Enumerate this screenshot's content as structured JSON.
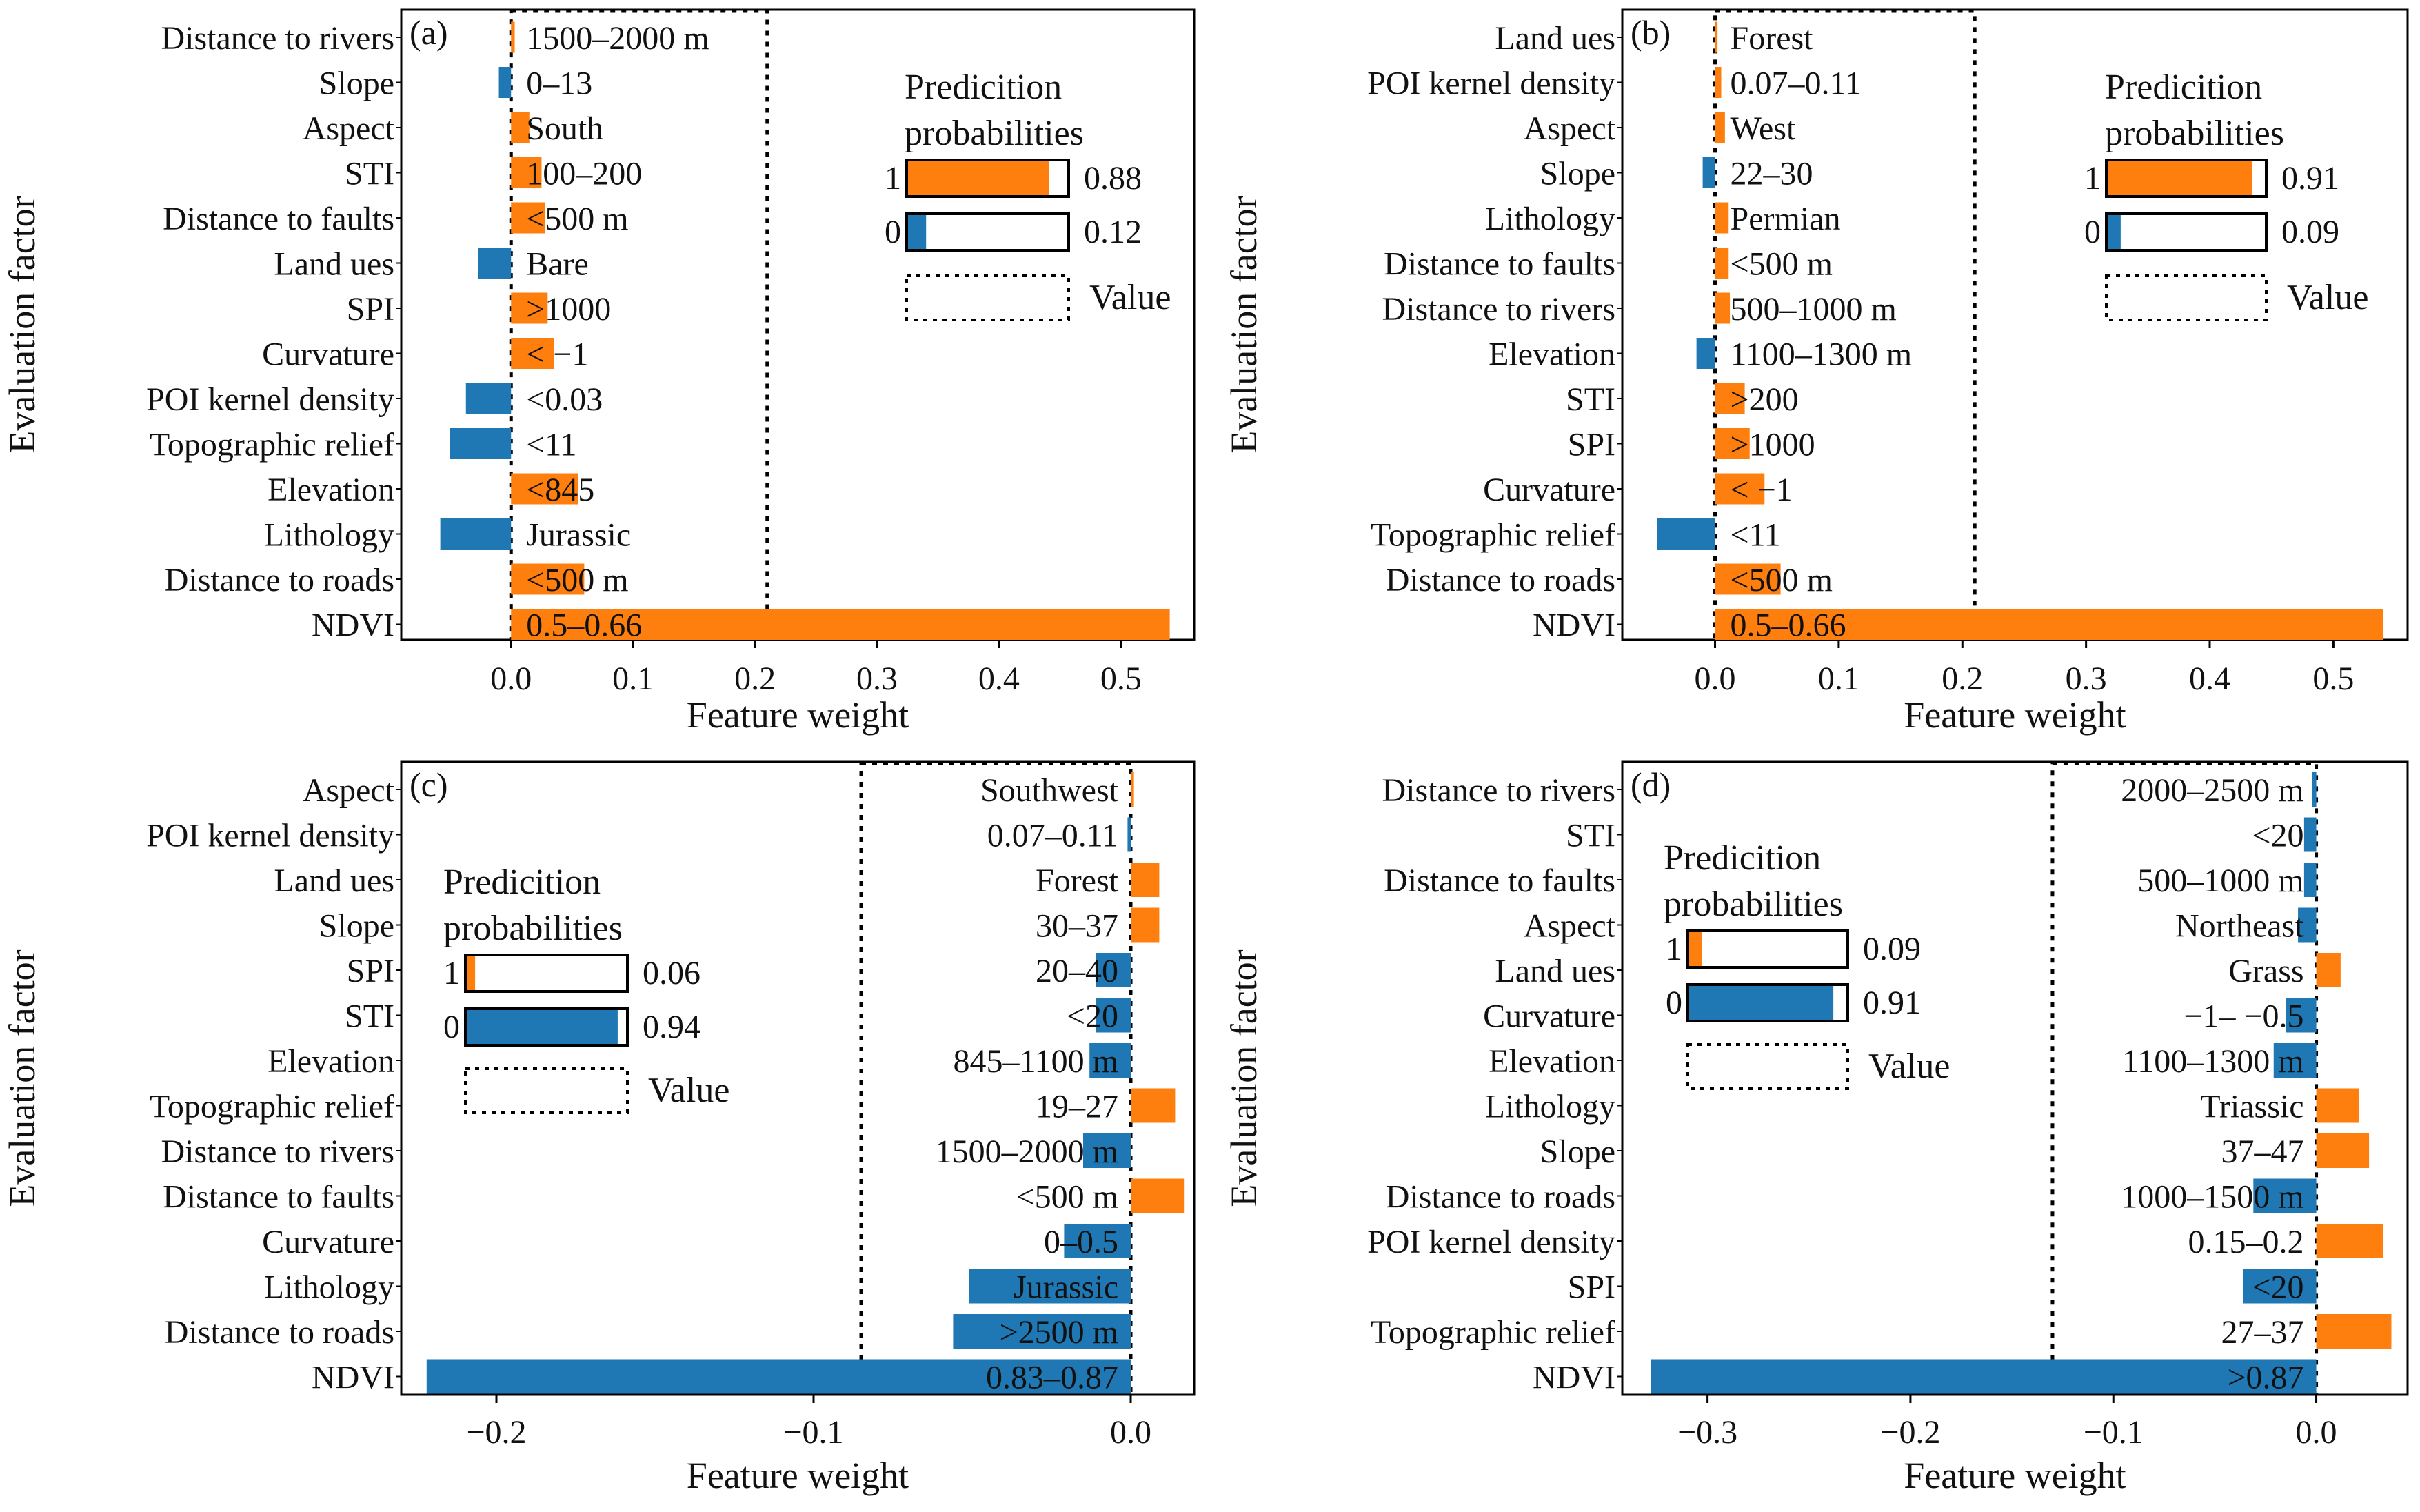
{
  "figure": {
    "colors": {
      "positive": "#ff7f0e",
      "negative": "#1f77b4",
      "frame": "#000000",
      "text": "#111111"
    },
    "common": {
      "xlabel": "Feature weight",
      "ylabel": "Evaluation factor",
      "legend_title_line1": "Predicition",
      "legend_title_line2": "probabilities",
      "value_legend_label": "Value"
    }
  },
  "chart_data": [
    {
      "panel": "(a)",
      "type": "bar",
      "orientation": "horizontal",
      "xlabel": "Feature weight",
      "ylabel": "Evaluation factor",
      "xlim": [
        -0.09,
        0.56
      ],
      "xticks": [
        0.0,
        0.1,
        0.2,
        0.3,
        0.4,
        0.5
      ],
      "xtick_labels": [
        "0.0",
        "0.1",
        "0.2",
        "0.3",
        "0.4",
        "0.5"
      ],
      "value_box_x": 0.21,
      "values_side": "right",
      "prediction_probabilities": {
        "class1": 0.88,
        "class0": 0.12,
        "label1": "1",
        "label0": "0",
        "text1": "0.88",
        "text0": "0.12"
      },
      "rows": [
        {
          "factor": "Distance to rivers",
          "value": "1500–2000 m",
          "weight": 0.003
        },
        {
          "factor": "Slope",
          "value": "0–13",
          "weight": -0.01
        },
        {
          "factor": "Aspect",
          "value": "South",
          "weight": 0.015
        },
        {
          "factor": "STI",
          "value": "100–200",
          "weight": 0.025
        },
        {
          "factor": "Distance to faults",
          "value": "<500 m",
          "weight": 0.028
        },
        {
          "factor": "Land ues",
          "value": "Bare",
          "weight": -0.027
        },
        {
          "factor": "SPI",
          "value": ">1000",
          "weight": 0.03
        },
        {
          "factor": "Curvature",
          "value": "< −1",
          "weight": 0.035
        },
        {
          "factor": "POI kernel density",
          "value": "<0.03",
          "weight": -0.037
        },
        {
          "factor": "Topographic relief",
          "value": "<11",
          "weight": -0.05
        },
        {
          "factor": "Elevation",
          "value": "<845",
          "weight": 0.055
        },
        {
          "factor": "Lithology",
          "value": "Jurassic",
          "weight": -0.058
        },
        {
          "factor": "Distance to roads",
          "value": "<500 m",
          "weight": 0.06
        },
        {
          "factor": "NDVI",
          "value": "0.5–0.66",
          "weight": 0.54
        }
      ]
    },
    {
      "panel": "(b)",
      "type": "bar",
      "orientation": "horizontal",
      "xlabel": "Feature weight",
      "ylabel": "Evaluation factor",
      "xlim": [
        -0.075,
        0.56
      ],
      "xticks": [
        0.0,
        0.1,
        0.2,
        0.3,
        0.4,
        0.5
      ],
      "xtick_labels": [
        "0.0",
        "0.1",
        "0.2",
        "0.3",
        "0.4",
        "0.5"
      ],
      "value_box_x": 0.21,
      "values_side": "right",
      "prediction_probabilities": {
        "class1": 0.91,
        "class0": 0.09,
        "label1": "1",
        "label0": "0",
        "text1": "0.91",
        "text0": "0.09"
      },
      "rows": [
        {
          "factor": "Land ues",
          "value": "Forest",
          "weight": 0.002
        },
        {
          "factor": "POI kernel density",
          "value": "0.07–0.11",
          "weight": 0.005
        },
        {
          "factor": "Aspect",
          "value": "West",
          "weight": 0.008
        },
        {
          "factor": "Slope",
          "value": "22–30",
          "weight": -0.01
        },
        {
          "factor": "Lithology",
          "value": "Permian",
          "weight": 0.011
        },
        {
          "factor": "Distance to faults",
          "value": "<500 m",
          "weight": 0.011
        },
        {
          "factor": "Distance to rivers",
          "value": "500–1000 m",
          "weight": 0.012
        },
        {
          "factor": "Elevation",
          "value": "1100–1300 m",
          "weight": -0.015
        },
        {
          "factor": "STI",
          "value": ">200",
          "weight": 0.024
        },
        {
          "factor": "SPI",
          "value": ">1000",
          "weight": 0.028
        },
        {
          "factor": "Curvature",
          "value": "< −1",
          "weight": 0.04
        },
        {
          "factor": "Topographic relief",
          "value": "<11",
          "weight": -0.047
        },
        {
          "factor": "Distance to roads",
          "value": "<500 m",
          "weight": 0.053
        },
        {
          "factor": "NDVI",
          "value": "0.5–0.66",
          "weight": 0.54
        }
      ]
    },
    {
      "panel": "(c)",
      "type": "bar",
      "orientation": "horizontal",
      "xlabel": "Feature weight",
      "ylabel": "Evaluation factor",
      "xlim": [
        -0.23,
        0.02
      ],
      "xticks": [
        -0.2,
        -0.1,
        0.0
      ],
      "xtick_labels": [
        "−0.2",
        "−0.1",
        "0.0"
      ],
      "value_box_x": -0.085,
      "values_side": "left",
      "prediction_probabilities": {
        "class1": 0.06,
        "class0": 0.94,
        "label1": "1",
        "label0": "0",
        "text1": "0.06",
        "text0": "0.94"
      },
      "rows": [
        {
          "factor": "Aspect",
          "value": "Southwest",
          "weight": 0.001
        },
        {
          "factor": "POI kernel density",
          "value": "0.07–0.11",
          "weight": -0.001
        },
        {
          "factor": "Land ues",
          "value": "Forest",
          "weight": 0.009
        },
        {
          "factor": "Slope",
          "value": "30–37",
          "weight": 0.009
        },
        {
          "factor": "SPI",
          "value": "20–40",
          "weight": -0.011
        },
        {
          "factor": "STI",
          "value": "<20",
          "weight": -0.011
        },
        {
          "factor": "Elevation",
          "value": "845–1100 m",
          "weight": -0.013
        },
        {
          "factor": "Topographic relief",
          "value": "19–27",
          "weight": 0.014
        },
        {
          "factor": "Distance to rivers",
          "value": "1500–2000 m",
          "weight": -0.015
        },
        {
          "factor": "Distance to faults",
          "value": "<500 m",
          "weight": 0.017
        },
        {
          "factor": "Curvature",
          "value": "0–0.5",
          "weight": -0.021
        },
        {
          "factor": "Lithology",
          "value": "Jurassic",
          "weight": -0.051
        },
        {
          "factor": "Distance to roads",
          "value": ">2500 m",
          "weight": -0.056
        },
        {
          "factor": "NDVI",
          "value": "0.83–0.87",
          "weight": -0.222
        }
      ]
    },
    {
      "panel": "(d)",
      "type": "bar",
      "orientation": "horizontal",
      "xlabel": "Feature weight",
      "ylabel": "Evaluation factor",
      "xlim": [
        -0.342,
        0.045
      ],
      "xticks": [
        -0.3,
        -0.2,
        -0.1,
        0.0
      ],
      "xtick_labels": [
        "−0.3",
        "−0.2",
        "−0.1",
        "0.0"
      ],
      "value_box_x": -0.13,
      "values_side": "left",
      "prediction_probabilities": {
        "class1": 0.09,
        "class0": 0.91,
        "label1": "1",
        "label0": "0",
        "text1": "0.09",
        "text0": "0.91"
      },
      "rows": [
        {
          "factor": "Distance to rivers",
          "value": "2000–2500 m",
          "weight": -0.002
        },
        {
          "factor": "STI",
          "value": "<20",
          "weight": -0.006
        },
        {
          "factor": "Distance to faults",
          "value": "500–1000 m",
          "weight": -0.006
        },
        {
          "factor": "Aspect",
          "value": "Northeast",
          "weight": -0.009
        },
        {
          "factor": "Land ues",
          "value": "Grass",
          "weight": 0.012
        },
        {
          "factor": "Curvature",
          "value": "−1– −0.5",
          "weight": -0.015
        },
        {
          "factor": "Elevation",
          "value": "1100–1300 m",
          "weight": -0.021
        },
        {
          "factor": "Lithology",
          "value": "Triassic",
          "weight": 0.021
        },
        {
          "factor": "Slope",
          "value": "37–47",
          "weight": 0.026
        },
        {
          "factor": "Distance to roads",
          "value": "1000–1500 m",
          "weight": -0.031
        },
        {
          "factor": "POI kernel density",
          "value": "0.15–0.2",
          "weight": 0.033
        },
        {
          "factor": "SPI",
          "value": "<20",
          "weight": -0.036
        },
        {
          "factor": "Topographic relief",
          "value": "27–37",
          "weight": 0.037
        },
        {
          "factor": "NDVI",
          "value": ">0.87",
          "weight": -0.328
        }
      ]
    }
  ]
}
